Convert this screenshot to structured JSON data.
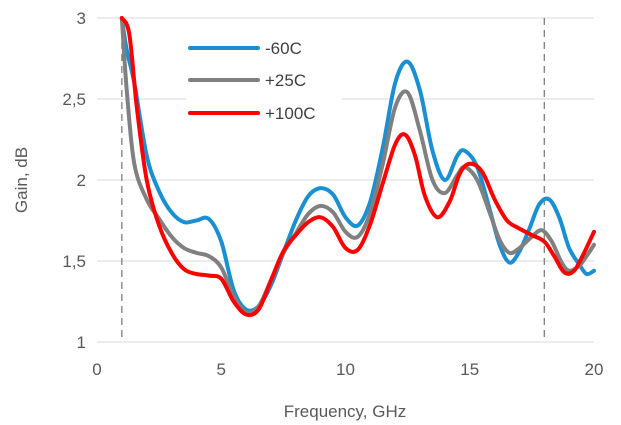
{
  "chart_data": {
    "type": "line",
    "title": "",
    "xlabel": "Frequency, GHz",
    "ylabel": "Gain, dB",
    "xlim": [
      0,
      20
    ],
    "ylim": [
      1,
      3
    ],
    "x_ticks": [
      0,
      5,
      10,
      15,
      20
    ],
    "x_tick_labels": [
      "0",
      "5",
      "10",
      "15",
      "20"
    ],
    "y_ticks": [
      1,
      1.5,
      2,
      2.5,
      3
    ],
    "y_tick_labels": [
      "1",
      "1,5",
      "2",
      "2,5",
      "3"
    ],
    "grid": "horizontal",
    "legend_position": "top-left inside",
    "vertical_markers": [
      1.0,
      18.0
    ],
    "series": [
      {
        "name": "-60C",
        "color": "#1a8fd1",
        "points": [
          [
            1.0,
            3.0
          ],
          [
            1.2,
            2.8
          ],
          [
            1.5,
            2.6
          ],
          [
            2.0,
            2.15
          ],
          [
            2.5,
            1.93
          ],
          [
            3.0,
            1.8
          ],
          [
            3.5,
            1.74
          ],
          [
            4.0,
            1.75
          ],
          [
            4.5,
            1.76
          ],
          [
            5.0,
            1.62
          ],
          [
            5.5,
            1.32
          ],
          [
            6.0,
            1.2
          ],
          [
            6.5,
            1.22
          ],
          [
            7.0,
            1.35
          ],
          [
            7.5,
            1.55
          ],
          [
            8.0,
            1.75
          ],
          [
            8.5,
            1.9
          ],
          [
            9.0,
            1.95
          ],
          [
            9.5,
            1.91
          ],
          [
            10.0,
            1.77
          ],
          [
            10.5,
            1.72
          ],
          [
            11.0,
            1.87
          ],
          [
            11.5,
            2.2
          ],
          [
            12.0,
            2.6
          ],
          [
            12.5,
            2.73
          ],
          [
            13.0,
            2.55
          ],
          [
            13.5,
            2.18
          ],
          [
            14.0,
            2.0
          ],
          [
            14.5,
            2.15
          ],
          [
            14.8,
            2.18
          ],
          [
            15.3,
            2.08
          ],
          [
            15.8,
            1.82
          ],
          [
            16.2,
            1.6
          ],
          [
            16.6,
            1.49
          ],
          [
            17.0,
            1.56
          ],
          [
            17.4,
            1.7
          ],
          [
            17.8,
            1.85
          ],
          [
            18.2,
            1.88
          ],
          [
            18.6,
            1.77
          ],
          [
            19.0,
            1.58
          ],
          [
            19.4,
            1.48
          ],
          [
            19.7,
            1.42
          ],
          [
            20.0,
            1.44
          ]
        ]
      },
      {
        "name": "+25C",
        "color": "#808080",
        "points": [
          [
            1.0,
            3.0
          ],
          [
            1.2,
            2.55
          ],
          [
            1.5,
            2.1
          ],
          [
            2.0,
            1.88
          ],
          [
            2.5,
            1.76
          ],
          [
            3.0,
            1.65
          ],
          [
            3.5,
            1.58
          ],
          [
            4.0,
            1.55
          ],
          [
            4.5,
            1.53
          ],
          [
            5.0,
            1.46
          ],
          [
            5.5,
            1.28
          ],
          [
            6.0,
            1.18
          ],
          [
            6.5,
            1.22
          ],
          [
            7.0,
            1.38
          ],
          [
            7.5,
            1.55
          ],
          [
            8.0,
            1.67
          ],
          [
            8.5,
            1.79
          ],
          [
            9.0,
            1.84
          ],
          [
            9.5,
            1.8
          ],
          [
            10.0,
            1.68
          ],
          [
            10.5,
            1.65
          ],
          [
            11.0,
            1.8
          ],
          [
            11.5,
            2.1
          ],
          [
            12.0,
            2.45
          ],
          [
            12.5,
            2.54
          ],
          [
            13.0,
            2.3
          ],
          [
            13.5,
            2.0
          ],
          [
            14.0,
            1.92
          ],
          [
            14.5,
            2.03
          ],
          [
            14.8,
            2.08
          ],
          [
            15.3,
            2.0
          ],
          [
            15.8,
            1.8
          ],
          [
            16.2,
            1.63
          ],
          [
            16.6,
            1.55
          ],
          [
            17.0,
            1.58
          ],
          [
            17.5,
            1.65
          ],
          [
            17.9,
            1.69
          ],
          [
            18.3,
            1.62
          ],
          [
            18.7,
            1.49
          ],
          [
            19.0,
            1.44
          ],
          [
            19.4,
            1.47
          ],
          [
            19.7,
            1.53
          ],
          [
            20.0,
            1.6
          ]
        ]
      },
      {
        "name": "+100C",
        "color": "#ff0000",
        "points": [
          [
            1.0,
            3.0
          ],
          [
            1.3,
            2.9
          ],
          [
            1.6,
            2.45
          ],
          [
            2.0,
            2.0
          ],
          [
            2.5,
            1.72
          ],
          [
            3.0,
            1.55
          ],
          [
            3.5,
            1.45
          ],
          [
            4.0,
            1.42
          ],
          [
            4.5,
            1.41
          ],
          [
            5.0,
            1.39
          ],
          [
            5.5,
            1.25
          ],
          [
            6.0,
            1.17
          ],
          [
            6.5,
            1.2
          ],
          [
            7.0,
            1.38
          ],
          [
            7.5,
            1.56
          ],
          [
            8.0,
            1.66
          ],
          [
            8.5,
            1.74
          ],
          [
            9.0,
            1.77
          ],
          [
            9.5,
            1.71
          ],
          [
            10.0,
            1.58
          ],
          [
            10.5,
            1.57
          ],
          [
            11.0,
            1.73
          ],
          [
            11.5,
            1.98
          ],
          [
            12.0,
            2.22
          ],
          [
            12.4,
            2.28
          ],
          [
            12.8,
            2.15
          ],
          [
            13.2,
            1.9
          ],
          [
            13.7,
            1.77
          ],
          [
            14.2,
            1.87
          ],
          [
            14.6,
            2.04
          ],
          [
            15.0,
            2.1
          ],
          [
            15.5,
            2.05
          ],
          [
            16.0,
            1.88
          ],
          [
            16.5,
            1.75
          ],
          [
            17.0,
            1.7
          ],
          [
            17.5,
            1.66
          ],
          [
            18.0,
            1.62
          ],
          [
            18.4,
            1.53
          ],
          [
            18.8,
            1.43
          ],
          [
            19.2,
            1.44
          ],
          [
            19.6,
            1.55
          ],
          [
            20.0,
            1.68
          ]
        ]
      }
    ]
  }
}
